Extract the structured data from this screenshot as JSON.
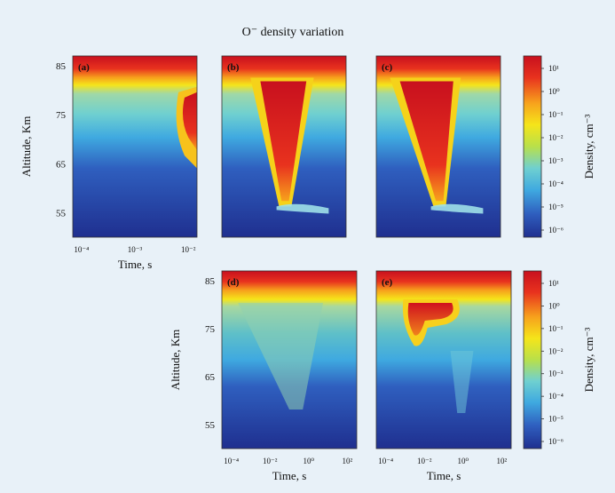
{
  "chart_data": {
    "type": "heatmap",
    "title": "O⁻ density variation",
    "panels": [
      {
        "label": "(a)",
        "xticks": [
          "10⁻⁴",
          "10⁻³",
          "10⁻²"
        ],
        "xlabel": "Time, s",
        "ylabel": "Altitude, Km",
        "yticks": [
          "85",
          "75",
          "65",
          "55"
        ],
        "feature": "late-plume"
      },
      {
        "label": "(b)",
        "xticks": [],
        "xlabel": "",
        "ylabel": "",
        "yticks": [],
        "feature": "v-plume"
      },
      {
        "label": "(c)",
        "xticks": [],
        "xlabel": "",
        "ylabel": "",
        "yticks": [],
        "feature": "v-plume-wide"
      },
      {
        "label": "(d)",
        "xticks": [
          "10⁻⁴",
          "10⁻²",
          "10⁰",
          "10²"
        ],
        "xlabel": "Time, s",
        "ylabel": "Altitude, Km",
        "yticks": [
          "85",
          "75",
          "65",
          "55"
        ],
        "feature": "faint-v"
      },
      {
        "label": "(e)",
        "xticks": [
          "10⁻⁴",
          "10⁻²",
          "10⁰",
          "10²"
        ],
        "xlabel": "Time, s",
        "ylabel": "",
        "yticks": [],
        "feature": "blob"
      }
    ],
    "colorbar": {
      "label": "Density, cm⁻³",
      "ticks": [
        "10¹",
        "10⁰",
        "10⁻¹",
        "10⁻²",
        "10⁻³",
        "10⁻⁴",
        "10⁻⁵",
        "10⁻⁶"
      ],
      "log_range": [
        -6,
        1
      ]
    },
    "yrange_km": [
      50,
      87
    ],
    "colors": [
      "#1f2f8f",
      "#2f5fbf",
      "#3fa9e0",
      "#6fd0d0",
      "#b8e04a",
      "#f5e51a",
      "#f7a21c",
      "#e8321e",
      "#c8101e"
    ]
  }
}
